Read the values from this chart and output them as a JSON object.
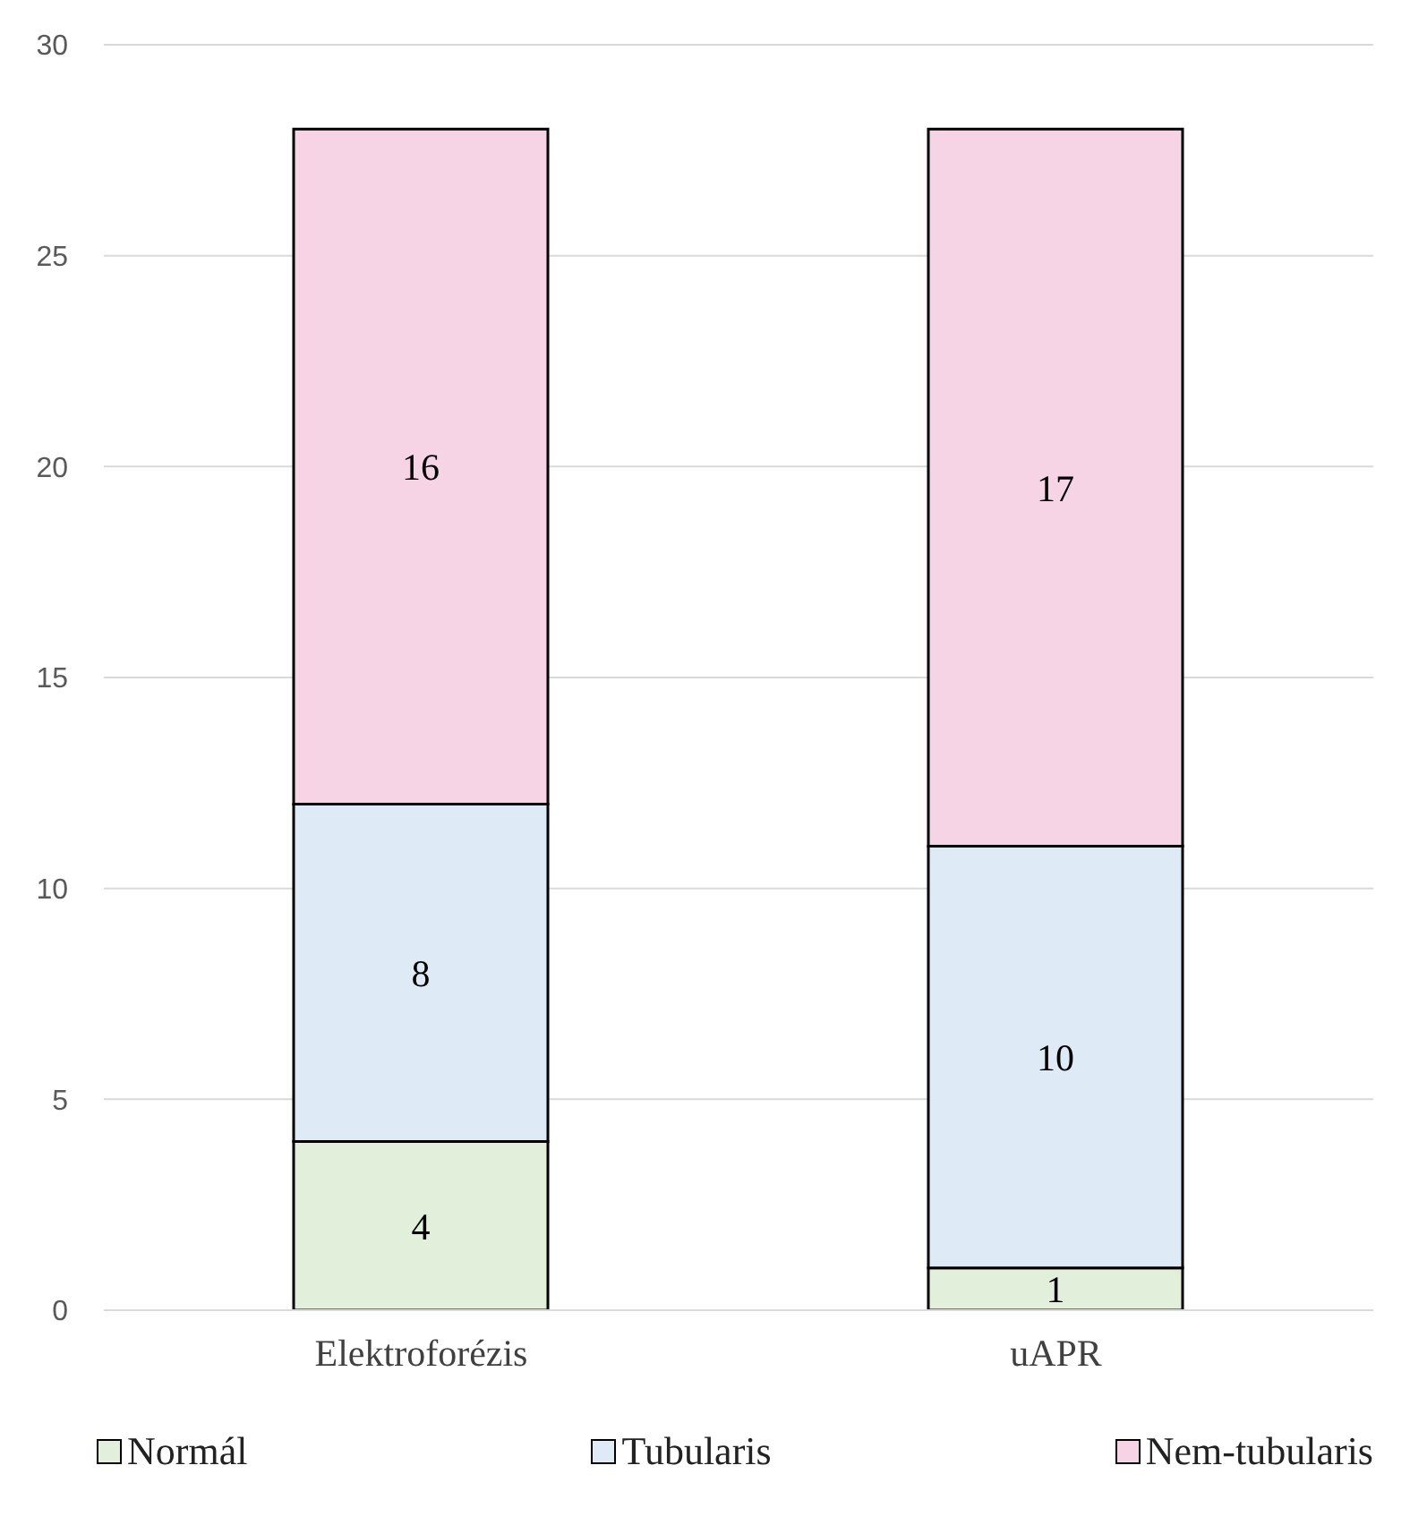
{
  "chart_data": {
    "type": "bar",
    "stacked": true,
    "categories": [
      "Elektroforézis",
      "uAPR"
    ],
    "series": [
      {
        "name": "Normál",
        "color": "#e2efda",
        "values": [
          4,
          1
        ]
      },
      {
        "name": "Tubularis",
        "color": "#deebf7",
        "values": [
          8,
          10
        ]
      },
      {
        "name": "Nem-tubularis",
        "color": "#f6d3e5",
        "values": [
          16,
          17
        ]
      }
    ],
    "ylim": [
      0,
      30
    ],
    "yticks": [
      0,
      5,
      10,
      15,
      20,
      25,
      30
    ],
    "grid": "y",
    "legend": "bottom",
    "data_labels": true
  }
}
